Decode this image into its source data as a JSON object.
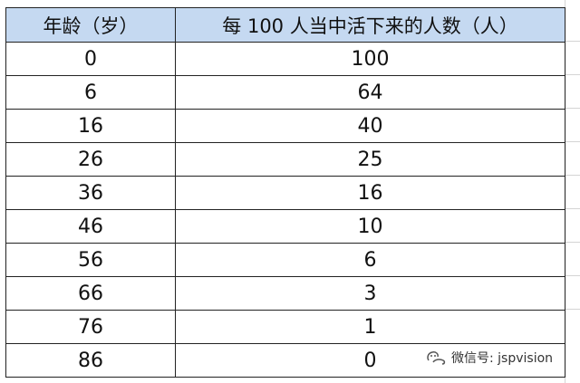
{
  "table": {
    "headers": [
      "年龄（岁）",
      "每 100 人当中活下来的人数（人）"
    ],
    "rows": [
      [
        "0",
        "100"
      ],
      [
        "6",
        "64"
      ],
      [
        "16",
        "40"
      ],
      [
        "26",
        "25"
      ],
      [
        "36",
        "16"
      ],
      [
        "46",
        "10"
      ],
      [
        "56",
        "6"
      ],
      [
        "66",
        "3"
      ],
      [
        "76",
        "1"
      ],
      [
        "86",
        "0"
      ]
    ]
  },
  "watermark": {
    "text": "微信号: jspvision"
  },
  "colors": {
    "header_bg": "#c5d9f1",
    "border": "#222222"
  }
}
